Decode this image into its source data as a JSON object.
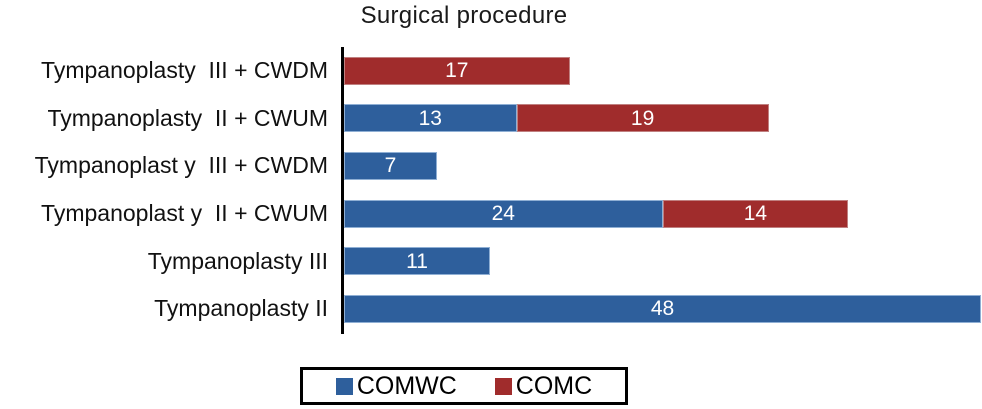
{
  "chart_data": {
    "type": "bar",
    "orientation": "horizontal",
    "stacked": true,
    "title": "Surgical procedure",
    "categories": [
      "Tympanoplasty  III + CWDM",
      "Tympanoplasty  II + CWUM",
      "Tympanoplast y  III + CWDM",
      "Tympanoplast y  II + CWUM",
      "Tympanoplasty III",
      "Tympanoplasty II"
    ],
    "series": [
      {
        "name": "COMWC",
        "color": "#2E5F9C",
        "values": [
          0,
          13,
          7,
          24,
          11,
          48
        ]
      },
      {
        "name": "COMC",
        "color": "#A02C2C",
        "values": [
          17,
          19,
          0,
          14,
          0,
          0
        ]
      }
    ],
    "xlim": [
      0,
      48
    ],
    "grid": false,
    "legend_position": "bottom",
    "value_label_style": "inside-center-white",
    "axis_color": "#000000"
  }
}
